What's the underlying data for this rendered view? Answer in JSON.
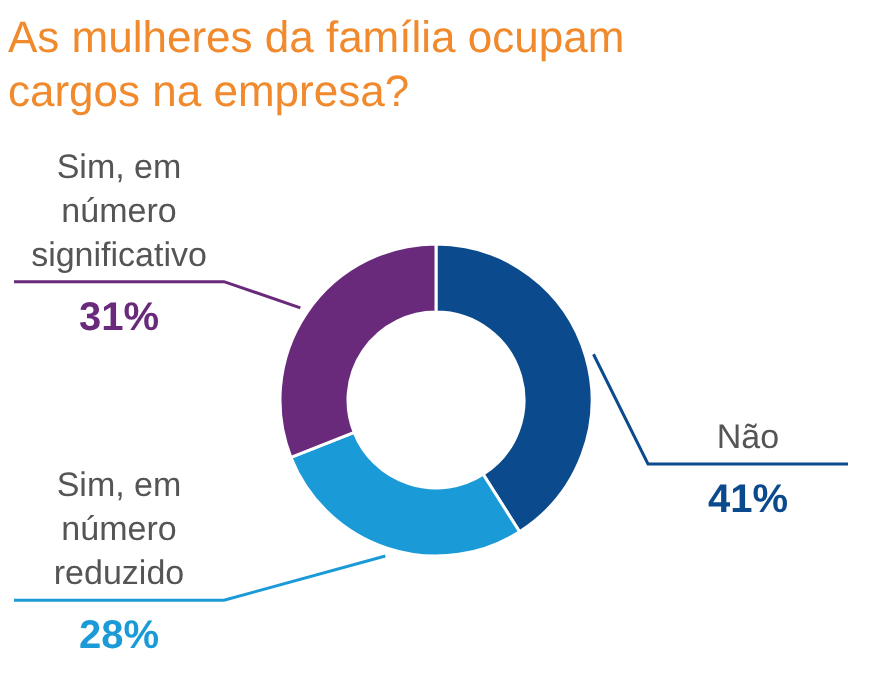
{
  "chart_data": {
    "type": "donut",
    "title": "As mulheres da família ocupam cargos na empresa?",
    "categories": [
      "Não",
      "Sim, em número reduzido",
      "Sim, em número significativo"
    ],
    "values": [
      41,
      28,
      31
    ],
    "value_labels": [
      "41%",
      "28%",
      "31%"
    ],
    "colors": [
      "#0b4a8c",
      "#1b9ad8",
      "#6a2a7c"
    ]
  }
}
